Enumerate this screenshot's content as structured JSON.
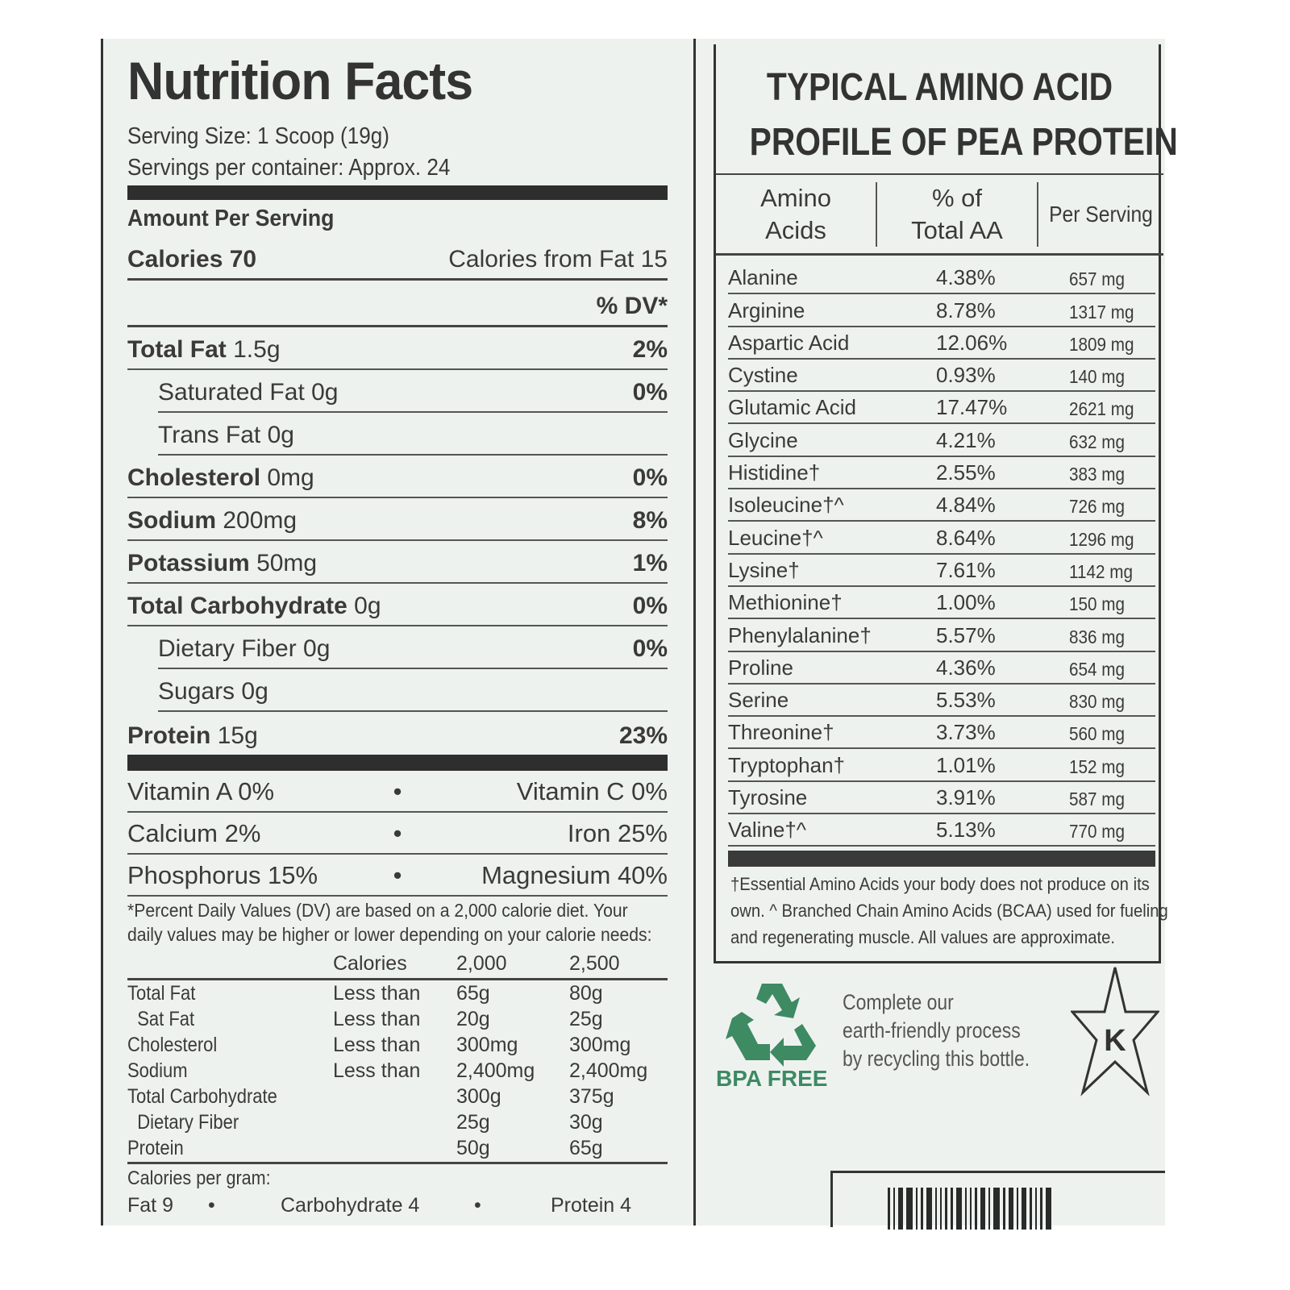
{
  "nutrition": {
    "title": "Nutrition Facts",
    "serving_size": "Serving Size: 1 Scoop (19g)",
    "servings_per_container": "Servings per container: Approx. 24",
    "amount_per_serving": "Amount Per Serving",
    "calories": "Calories 70",
    "calories_from_fat": "Calories from Fat 15",
    "dv_header": "% DV*",
    "rows": [
      {
        "label": "Total Fat",
        "amount": "1.5g",
        "dv": "2%",
        "indent": false
      },
      {
        "label": "",
        "amount": "Saturated Fat 0g",
        "dv": "0%",
        "indent": true
      },
      {
        "label": "",
        "amount": "Trans Fat 0g",
        "dv": "",
        "indent": true
      },
      {
        "label": "Cholesterol",
        "amount": "0mg",
        "dv": "0%",
        "indent": false
      },
      {
        "label": "Sodium",
        "amount": "200mg",
        "dv": "8%",
        "indent": false
      },
      {
        "label": "Potassium",
        "amount": "50mg",
        "dv": "1%",
        "indent": false
      },
      {
        "label": "Total Carbohydrate",
        "amount": "0g",
        "dv": "0%",
        "indent": false
      },
      {
        "label": "",
        "amount": "Dietary Fiber 0g",
        "dv": "0%",
        "indent": true
      },
      {
        "label": "",
        "amount": "Sugars 0g",
        "dv": "",
        "indent": true
      },
      {
        "label": "Protein",
        "amount": "15g",
        "dv": "23%",
        "indent": false
      }
    ],
    "vitamins": [
      [
        "Vitamin A 0%",
        "Vitamin C 0%"
      ],
      [
        "Calcium 2%",
        "Iron 25%"
      ],
      [
        "Phosphorus 15%",
        "Magnesium 40%"
      ]
    ],
    "footnote": [
      "*Percent Daily Values (DV) are based on a 2,000 calorie diet.  Your",
      "daily values may be higher or lower depending on your calorie needs:"
    ],
    "dv_table": {
      "header": [
        "",
        "Calories",
        "2,000",
        "2,500"
      ],
      "rows": [
        [
          "Total Fat",
          "Less than",
          "65g",
          "80g"
        ],
        [
          "  Sat Fat",
          "Less than",
          "20g",
          "25g"
        ],
        [
          "Cholesterol",
          "Less than",
          "300mg",
          "300mg"
        ],
        [
          "Sodium",
          "Less than",
          "2,400mg",
          "2,400mg"
        ],
        [
          "Total Carbohydrate",
          "",
          "300g",
          "375g"
        ],
        [
          "  Dietary Fiber",
          "",
          "25g",
          "30g"
        ],
        [
          "Protein",
          "",
          "50g",
          "65g"
        ]
      ]
    },
    "cal_per_gram": "Calories per gram:",
    "cal_items": [
      "Fat 9",
      "Carbohydrate 4",
      "Protein 4"
    ]
  },
  "amino": {
    "title_line1": "TYPICAL AMINO ACID",
    "title_line2": "PROFILE OF PEA PROTEIN",
    "headers": [
      [
        "Amino",
        "Acids"
      ],
      [
        "% of",
        "Total AA"
      ],
      [
        "Per Serving",
        ""
      ]
    ],
    "rows": [
      [
        "Alanine",
        "4.38%",
        "657 mg"
      ],
      [
        "Arginine",
        "8.78%",
        "1317 mg"
      ],
      [
        "Aspartic Acid",
        "12.06%",
        "1809 mg"
      ],
      [
        "Cystine",
        "0.93%",
        "140 mg"
      ],
      [
        "Glutamic Acid",
        "17.47%",
        "2621 mg"
      ],
      [
        "Glycine",
        "4.21%",
        "632 mg"
      ],
      [
        "Histidine†",
        "2.55%",
        "383 mg"
      ],
      [
        "Isoleucine†^",
        "4.84%",
        "726 mg"
      ],
      [
        "Leucine†^",
        "8.64%",
        "1296 mg"
      ],
      [
        "Lysine†",
        "7.61%",
        "1142 mg"
      ],
      [
        "Methionine†",
        "1.00%",
        "150 mg"
      ],
      [
        "Phenylalanine†",
        "5.57%",
        "836 mg"
      ],
      [
        "Proline",
        "4.36%",
        "654 mg"
      ],
      [
        "Serine",
        "5.53%",
        "830 mg"
      ],
      [
        "Threonine†",
        "3.73%",
        "560 mg"
      ],
      [
        "Tryptophan†",
        "1.01%",
        "152 mg"
      ],
      [
        "Tyrosine",
        "3.91%",
        "587 mg"
      ],
      [
        "Valine†^",
        "5.13%",
        "770 mg"
      ]
    ],
    "footnote": [
      "†Essential Amino Acids your body does not produce on its",
      "own. ^ Branched Chain Amino Acids (BCAA) used for fueling",
      "and regenerating muscle. All values are approximate."
    ]
  },
  "recycle": {
    "badge": "BPA FREE",
    "text": [
      "Complete our",
      "earth-friendly process",
      "by recycling this bottle."
    ],
    "icon": "recycle-icon",
    "color": "#3d8a63"
  },
  "kosher": {
    "letter": "K",
    "icon": "kosher-star-icon"
  }
}
